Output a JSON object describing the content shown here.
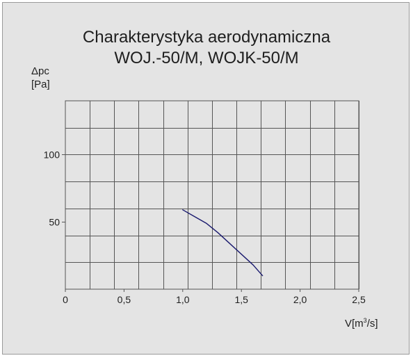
{
  "chart_data": {
    "type": "line",
    "title_line1": "Charakterystyka aerodynamiczna",
    "title_line2": "WOJ.-50/M, WOJK-50/M",
    "ylabel_line1": "Δpc",
    "ylabel_line2": "[Pa]",
    "xlabel_prefix": "V[m",
    "xlabel_sup": "3",
    "xlabel_suffix": "/s]",
    "xlim": [
      0,
      2.5
    ],
    "ylim": [
      0,
      140
    ],
    "xticks": [
      "0",
      "0,5",
      "1,0",
      "1,5",
      "2,0",
      "2,5"
    ],
    "xtick_values": [
      0,
      0.5,
      1.0,
      1.5,
      2.0,
      2.5
    ],
    "yticks": [
      "50",
      "100"
    ],
    "ytick_values": [
      50,
      100
    ],
    "grid": true,
    "grid_x_step": 0.2083,
    "grid_y_step": 20,
    "series": [
      {
        "color": "#1a1a6e",
        "x": [
          1.0,
          1.1,
          1.2,
          1.3,
          1.4,
          1.5,
          1.6,
          1.68
        ],
        "y": [
          59,
          54,
          49,
          42,
          34,
          26,
          18,
          10
        ]
      }
    ]
  },
  "colors": {
    "background": "#e4e4e4",
    "grid": "#555555",
    "curve": "#1a1a6e"
  }
}
